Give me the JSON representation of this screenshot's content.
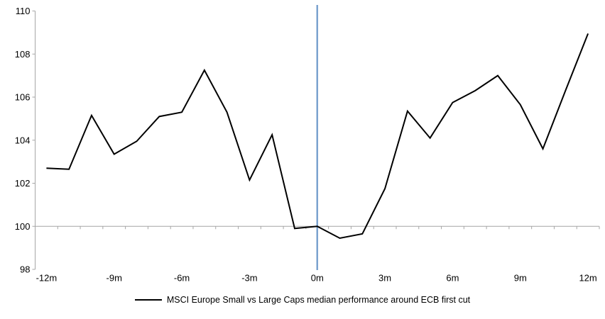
{
  "legend": {
    "label": "MSCI Europe Small vs Large Caps median performance around ECB first cut"
  },
  "chart_data": {
    "type": "line",
    "title": "",
    "categories": [
      "-12m",
      "-11m",
      "-10m",
      "-9m",
      "-8m",
      "-7m",
      "-6m",
      "-5m",
      "-4m",
      "-3m",
      "-2m",
      "-1m",
      "0m",
      "1m",
      "2m",
      "3m",
      "4m",
      "5m",
      "6m",
      "7m",
      "8m",
      "9m",
      "10m",
      "11m",
      "12m"
    ],
    "series": [
      {
        "name": "MSCI Europe Small vs Large Caps median performance around ECB first cut",
        "values": [
          102.7,
          102.65,
          105.15,
          103.35,
          103.95,
          105.1,
          105.3,
          107.25,
          105.3,
          102.15,
          104.25,
          99.9,
          100.0,
          99.45,
          99.65,
          101.75,
          105.35,
          104.1,
          105.75,
          106.3,
          107.0,
          105.65,
          103.6,
          106.3,
          108.95
        ]
      }
    ],
    "x_axis": {
      "tick_labels": [
        "-12m",
        "-9m",
        "-6m",
        "-3m",
        "0m",
        "3m",
        "6m",
        "9m",
        "12m"
      ],
      "boundary_ticks": true
    },
    "y_axis": {
      "ticks": [
        98,
        100,
        102,
        104,
        106,
        108,
        110
      ],
      "min": 98,
      "max": 110
    },
    "baseline_value": 100,
    "event_line": {
      "x_category": "0m"
    },
    "grid": "baseline-only",
    "legend_position": "bottom-center",
    "colors": {
      "line": "#000000",
      "event_line": "#7BA3CF",
      "axis": "#A6A6A6",
      "text": "#000000"
    }
  }
}
